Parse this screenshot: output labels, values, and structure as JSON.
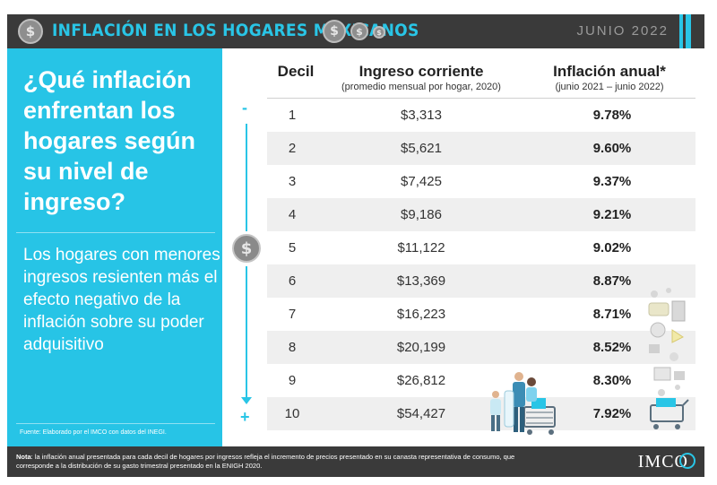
{
  "header": {
    "title": "INFLACIÓN EN LOS HOGARES MEXICANOS",
    "date": "JUNIO 2022",
    "coin_symbol": "$"
  },
  "left_panel": {
    "question": "¿Qué inflación enfrentan los hogares según su nivel de ingreso?",
    "body": "Los hogares con menores ingresos resienten más el efecto negativo de la inflación sobre su poder adquisitivo",
    "source": "Fuente: Elaborado por el IMCO con datos del INEGI."
  },
  "table": {
    "headers": {
      "decil": "Decil",
      "ingreso": "Ingreso corriente",
      "ingreso_sub": "(promedio mensual por hogar, 2020)",
      "inflacion": "Inflación anual*",
      "inflacion_sub": "(junio 2021 – junio 2022)"
    },
    "rows": [
      {
        "decil": "1",
        "ingreso": "$3,313",
        "inflacion": "9.78%"
      },
      {
        "decil": "2",
        "ingreso": "$5,621",
        "inflacion": "9.60%"
      },
      {
        "decil": "3",
        "ingreso": "$7,425",
        "inflacion": "9.37%"
      },
      {
        "decil": "4",
        "ingreso": "$9,186",
        "inflacion": "9.21%"
      },
      {
        "decil": "5",
        "ingreso": "$11,122",
        "inflacion": "9.02%"
      },
      {
        "decil": "6",
        "ingreso": "$13,369",
        "inflacion": "8.87%"
      },
      {
        "decil": "7",
        "ingreso": "$16,223",
        "inflacion": "8.71%"
      },
      {
        "decil": "8",
        "ingreso": "$20,199",
        "inflacion": "8.52%"
      },
      {
        "decil": "9",
        "ingreso": "$26,812",
        "inflacion": "8.30%"
      },
      {
        "decil": "10",
        "ingreso": "$54,427",
        "inflacion": "7.92%"
      }
    ]
  },
  "scale": {
    "minus": "-",
    "plus": "+"
  },
  "footer": {
    "note_label": "Nota",
    "note_text": ": la inflación anual presentada para cada decil de hogares por ingresos refleja el incremento de precios presentado en su canasta representativa de consumo, que corresponde a la distribución de su gasto trimestral presentado en la ENIGH 2020.",
    "logo": "IMCO"
  }
}
